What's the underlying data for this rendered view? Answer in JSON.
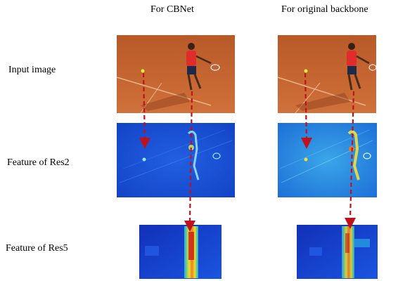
{
  "columns": {
    "cbnet": "For CBNet",
    "original": "For original backbone"
  },
  "rows": {
    "input": "Input image",
    "res2": "Feature of  Res2",
    "res5": "Feature of Res5"
  },
  "colors": {
    "arrow": "#c0121b",
    "clay_court": "#c8662e",
    "feature_blue": "#1a4fd6",
    "feature_hot": "#f2d21a"
  },
  "icons": [
    "tennis-player-image",
    "feature-map-heatmap",
    "dashed-arrow-icon"
  ]
}
